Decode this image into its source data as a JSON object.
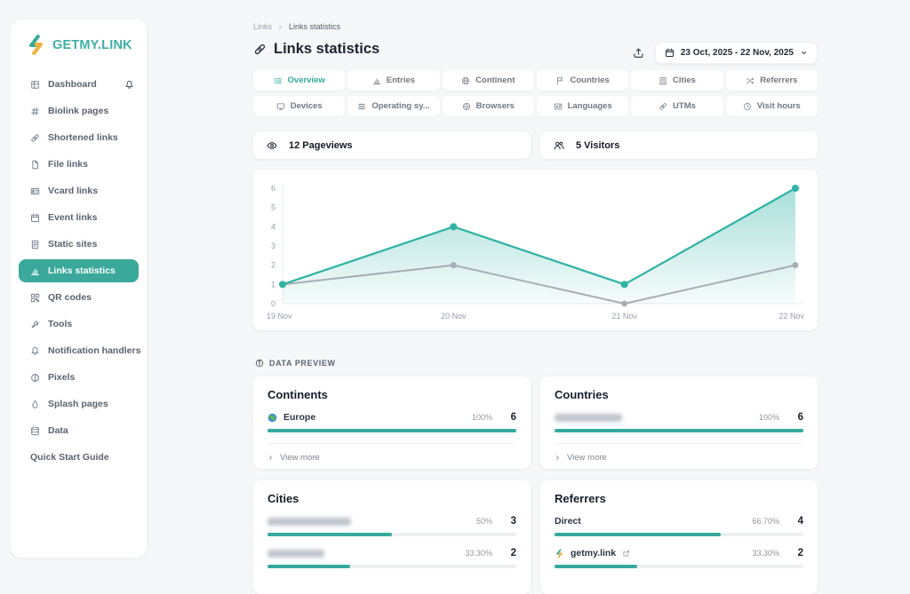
{
  "brand": {
    "name": "GETMY.LINK",
    "colors": {
      "teal": "#3aa99c",
      "yellow": "#f2b33d"
    }
  },
  "sidebar": {
    "items": [
      {
        "label": "Dashboard",
        "icon": "grid-icon",
        "trailing_icon": "bell-icon"
      },
      {
        "label": "Biolink pages",
        "icon": "hash-icon"
      },
      {
        "label": "Shortened links",
        "icon": "link-icon"
      },
      {
        "label": "File links",
        "icon": "file-icon"
      },
      {
        "label": "Vcard links",
        "icon": "id-card-icon"
      },
      {
        "label": "Event links",
        "icon": "calendar-icon"
      },
      {
        "label": "Static sites",
        "icon": "document-icon"
      },
      {
        "label": "Links statistics",
        "icon": "bar-chart-icon",
        "active": true
      },
      {
        "label": "QR codes",
        "icon": "qr-icon"
      },
      {
        "label": "Tools",
        "icon": "wrench-icon"
      },
      {
        "label": "Notification handlers",
        "icon": "bell-icon"
      },
      {
        "label": "Pixels",
        "icon": "contrast-icon"
      },
      {
        "label": "Splash pages",
        "icon": "droplet-icon"
      },
      {
        "label": "Data",
        "icon": "database-icon"
      },
      {
        "label": "Quick Start Guide",
        "icon": null
      }
    ]
  },
  "header": {
    "breadcrumb": {
      "parent": "Links",
      "current": "Links statistics"
    },
    "title": "Links statistics",
    "date_range": "23 Oct, 2025 - 22 Nov, 2025"
  },
  "tabs": {
    "row1": [
      {
        "label": "Overview",
        "icon": "list-icon",
        "active": true
      },
      {
        "label": "Entries",
        "icon": "bar-chart-icon"
      },
      {
        "label": "Continent",
        "icon": "globe-icon"
      },
      {
        "label": "Countries",
        "icon": "flag-icon"
      },
      {
        "label": "Cities",
        "icon": "building-icon"
      },
      {
        "label": "Referrers",
        "icon": "shuffle-icon"
      }
    ],
    "row2": [
      {
        "label": "Devices",
        "icon": "monitor-icon"
      },
      {
        "label": "Operating sy...",
        "icon": "layers-icon"
      },
      {
        "label": "Browsers",
        "icon": "compass-icon"
      },
      {
        "label": "Languages",
        "icon": "language-icon"
      },
      {
        "label": "UTMs",
        "icon": "link-icon"
      },
      {
        "label": "Visit hours",
        "icon": "clock-icon"
      }
    ]
  },
  "stats": [
    {
      "label": "12 Pageviews",
      "icon": "eye-icon"
    },
    {
      "label": "5 Visitors",
      "icon": "users-icon"
    }
  ],
  "chart_data": {
    "type": "area",
    "x": [
      "19 Nov",
      "20 Nov",
      "21 Nov",
      "22 Nov"
    ],
    "series": [
      {
        "name": "Pageviews",
        "values": [
          1,
          4,
          1,
          6
        ],
        "color": "#2fb3a4",
        "area": true
      },
      {
        "name": "Visitors",
        "values": [
          1,
          2,
          0,
          2
        ],
        "color": "#a6adb5",
        "area": false
      }
    ],
    "ylim": [
      0,
      6
    ],
    "yticks": [
      0,
      1,
      2,
      3,
      4,
      5,
      6
    ],
    "grid": false,
    "legend": "none"
  },
  "data_preview": {
    "label": "DATA PREVIEW",
    "icon": "info-icon"
  },
  "cards": {
    "continents": {
      "title": "Continents",
      "rows": [
        {
          "name": "Europe",
          "icon": "earth-icon",
          "percent": "100%",
          "count": "6",
          "bar": 100
        }
      ],
      "view_more": "View more"
    },
    "countries": {
      "title": "Countries",
      "rows": [
        {
          "redacted": true,
          "percent": "100%",
          "count": "6",
          "bar": 100
        }
      ],
      "view_more": "View more"
    },
    "cities": {
      "title": "Cities",
      "rows": [
        {
          "redacted": true,
          "percent": "50%",
          "count": "3",
          "bar": 50
        },
        {
          "redacted": true,
          "percent": "33.30%",
          "count": "2",
          "bar": 33.3
        }
      ]
    },
    "referrers": {
      "title": "Referrers",
      "rows": [
        {
          "name": "Direct",
          "percent": "66.70%",
          "count": "4",
          "bar": 66.7
        },
        {
          "name": "getmy.link",
          "icon": "getmylink-favicon",
          "external_icon": true,
          "percent": "33.30%",
          "count": "2",
          "bar": 33.3
        }
      ]
    }
  }
}
